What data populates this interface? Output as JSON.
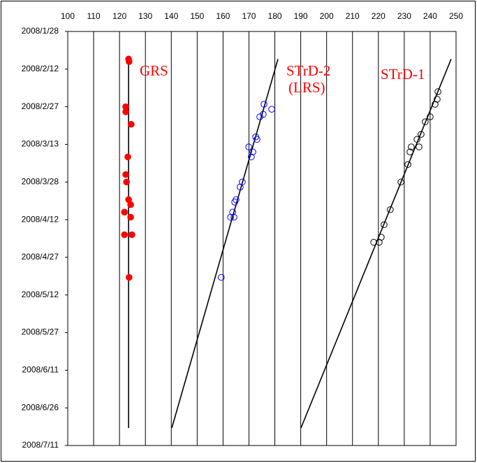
{
  "chart_data": {
    "type": "scatter",
    "xlim": [
      100,
      250
    ],
    "xticks": [
      100,
      110,
      120,
      130,
      140,
      150,
      160,
      170,
      180,
      190,
      200,
      210,
      220,
      230,
      240,
      250
    ],
    "ylim": [
      "2008/1/28",
      "2008/7/11"
    ],
    "yticks": [
      "2008/1/28",
      "2008/2/12",
      "2008/2/27",
      "2008/3/13",
      "2008/3/28",
      "2008/4/12",
      "2008/4/27",
      "2008/5/12",
      "2008/5/27",
      "2008/6/11",
      "2008/6/26",
      "2008/7/11"
    ],
    "y_inverted": true,
    "grid": true,
    "label_color": "#ff0000",
    "series": [
      {
        "name": "GRS",
        "color": "#ff0000",
        "filled": true,
        "x": [
          123.5,
          123.7,
          122.4,
          122.4,
          124.5,
          123.2,
          122.4,
          122.7,
          123.5,
          124.3,
          121.9,
          124.3,
          121.9,
          124.8,
          123.7
        ],
        "values": [
          "2008/2/8",
          "2008/2/9",
          "2008/2/27",
          "2008/2/29",
          "2008/3/5",
          "2008/3/18",
          "2008/3/25",
          "2008/3/28",
          "2008/4/4",
          "2008/4/6",
          "2008/4/9",
          "2008/4/11",
          "2008/4/18",
          "2008/4/18",
          "2008/5/5"
        ],
        "fit": {
          "x": [
            123.5,
            123.5
          ],
          "y": [
            "2008/2/7",
            "2008/7/4"
          ]
        }
      },
      {
        "name": "STrD-2 (LRS)",
        "color": "#0000ff",
        "filled": false,
        "x": [
          175.8,
          178.8,
          175.5,
          174.2,
          172.6,
          173.1,
          169.9,
          171.5,
          170.9,
          167.4,
          166.6,
          165.0,
          164.5,
          163.7,
          162.9,
          164.2,
          159.3
        ],
        "values": [
          "2008/2/26",
          "2008/2/28",
          "2008/3/1",
          "2008/3/2",
          "2008/3/10",
          "2008/3/11",
          "2008/3/14",
          "2008/3/16",
          "2008/3/18",
          "2008/3/28",
          "2008/3/30",
          "2008/4/4",
          "2008/4/5",
          "2008/4/9",
          "2008/4/11",
          "2008/4/11",
          "2008/5/5"
        ],
        "fit": {
          "x": [
            140.2,
            181.2
          ],
          "y": [
            "2008/7/4",
            "2008/2/8"
          ]
        }
      },
      {
        "name": "STrD-1",
        "color": "#000000",
        "filled": false,
        "x": [
          243.0,
          242.7,
          241.9,
          240.0,
          238.1,
          236.5,
          234.9,
          235.7,
          232.7,
          232.2,
          231.4,
          228.7,
          224.6,
          222.2,
          221.1,
          220.3,
          218.2
        ],
        "values": [
          "2008/2/21",
          "2008/2/24",
          "2008/2/26",
          "2008/3/2",
          "2008/3/4",
          "2008/3/9",
          "2008/3/11",
          "2008/3/14",
          "2008/3/14",
          "2008/3/16",
          "2008/3/21",
          "2008/3/28",
          "2008/4/8",
          "2008/4/14",
          "2008/4/19",
          "2008/4/21",
          "2008/4/21"
        ],
        "fit": {
          "x": [
            190.1,
            248.1
          ],
          "y": [
            "2008/7/4",
            "2008/2/8"
          ]
        }
      }
    ]
  }
}
